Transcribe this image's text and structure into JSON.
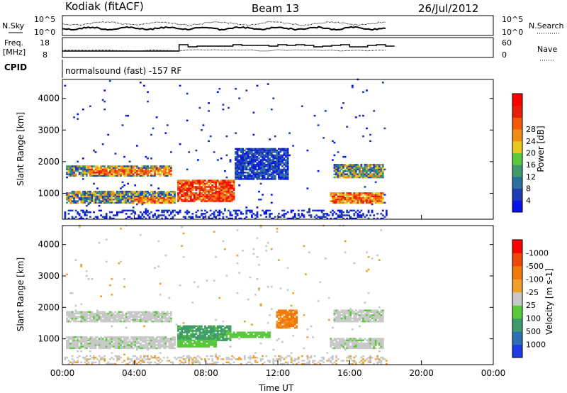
{
  "header": {
    "title_left": "Kodiak (fitACF)",
    "title_center": "Beam 13",
    "date": "26/Jul/2012"
  },
  "top_panels": {
    "nsky_label": "N.Sky",
    "nsearch_label": "N.Search",
    "nsky_ticks": [
      "10^5",
      "10^0"
    ],
    "nsearch_ticks": [
      "10^5",
      "10^0"
    ],
    "freq_label_1": "Freq.",
    "freq_label_2": "[MHz]",
    "nave_label": "Nave",
    "freq_ticks": [
      "18",
      "8"
    ],
    "nave_ticks": [
      "60",
      "0"
    ],
    "cpid_label": "CPID",
    "cpid_text": "normalsound (fast) -157 RF"
  },
  "chart_data": [
    {
      "type": "heatmap",
      "name": "power",
      "ylabel": "Slant Range [km]",
      "xlabel": "",
      "x_ticks": [
        "00:00",
        "04:00",
        "08:00",
        "12:00",
        "16:00",
        "20:00",
        "00:00"
      ],
      "x_range_hours": [
        0,
        24
      ],
      "y_ticks": [
        1000,
        2000,
        3000,
        4000
      ],
      "y_range_km": [
        180,
        4600
      ],
      "data_end_hour": 18.0,
      "colorbar": {
        "label": "Power [dB]",
        "ticks": [
          "4",
          "8",
          "12",
          "16",
          "20",
          "24",
          "28"
        ],
        "range": [
          0,
          32
        ],
        "colors": [
          "#0a14e6",
          "#1e3cb4",
          "#2e6e9e",
          "#3f9a6c",
          "#5ac83c",
          "#e6c81e",
          "#f08c14",
          "#f05a0a",
          "#e61e0a",
          "#ff0000"
        ]
      },
      "bands": [
        {
          "t0": 0.2,
          "t1": 6.0,
          "r0": 1500,
          "r1": 1850,
          "level": "mid"
        },
        {
          "t0": 1.5,
          "t1": 6.0,
          "r0": 1550,
          "r1": 1750,
          "level": "high"
        },
        {
          "t0": 0.2,
          "t1": 6.2,
          "r0": 650,
          "r1": 1050,
          "level": "mid"
        },
        {
          "t0": 4.0,
          "t1": 6.0,
          "r0": 650,
          "r1": 850,
          "level": "high"
        },
        {
          "t0": 6.3,
          "t1": 9.5,
          "r0": 700,
          "r1": 1400,
          "level": "peak"
        },
        {
          "t0": 9.5,
          "t1": 12.5,
          "r0": 1400,
          "r1": 2400,
          "level": "low"
        },
        {
          "t0": 14.8,
          "t1": 17.8,
          "r0": 650,
          "r1": 1000,
          "level": "high"
        },
        {
          "t0": 15.0,
          "t1": 17.8,
          "r0": 1450,
          "r1": 1900,
          "level": "mid"
        }
      ]
    },
    {
      "type": "heatmap",
      "name": "velocity",
      "ylabel": "Slant Range [km]",
      "xlabel": "Time UT",
      "x_ticks": [
        "00:00",
        "04:00",
        "08:00",
        "12:00",
        "16:00",
        "20:00",
        "00:00"
      ],
      "x_range_hours": [
        0,
        24
      ],
      "y_ticks": [
        1000,
        2000,
        3000,
        4000
      ],
      "y_range_km": [
        180,
        4600
      ],
      "data_end_hour": 18.0,
      "colorbar": {
        "label": "Velocity [m s-1]",
        "ticks": [
          "1000",
          "500",
          "100",
          "25",
          "-25",
          "-100",
          "-500",
          "-1000"
        ],
        "colors": [
          "#1e3ce6",
          "#2e6eb4",
          "#3f9a6c",
          "#5ac83c",
          "#c8c8c8",
          "#f0a028",
          "#f0780a",
          "#f0460a",
          "#ff0000"
        ]
      },
      "bands": [
        {
          "t0": 0.2,
          "t1": 6.0,
          "r0": 1500,
          "r1": 1850,
          "level": "gray"
        },
        {
          "t0": 0.2,
          "t1": 6.2,
          "r0": 650,
          "r1": 1050,
          "level": "gray"
        },
        {
          "t0": 6.3,
          "t1": 9.3,
          "r0": 900,
          "r1": 1400,
          "level": "dgreen"
        },
        {
          "t0": 6.3,
          "t1": 8.5,
          "r0": 700,
          "r1": 950,
          "level": "lgreen"
        },
        {
          "t0": 9.0,
          "t1": 11.5,
          "r0": 1000,
          "r1": 1200,
          "level": "lgreen"
        },
        {
          "t0": 11.8,
          "t1": 13.0,
          "r0": 1300,
          "r1": 1900,
          "level": "orange"
        },
        {
          "t0": 14.8,
          "t1": 17.8,
          "r0": 650,
          "r1": 1000,
          "level": "gray"
        },
        {
          "t0": 15.0,
          "t1": 17.8,
          "r0": 1500,
          "r1": 1900,
          "level": "gray"
        }
      ]
    }
  ]
}
